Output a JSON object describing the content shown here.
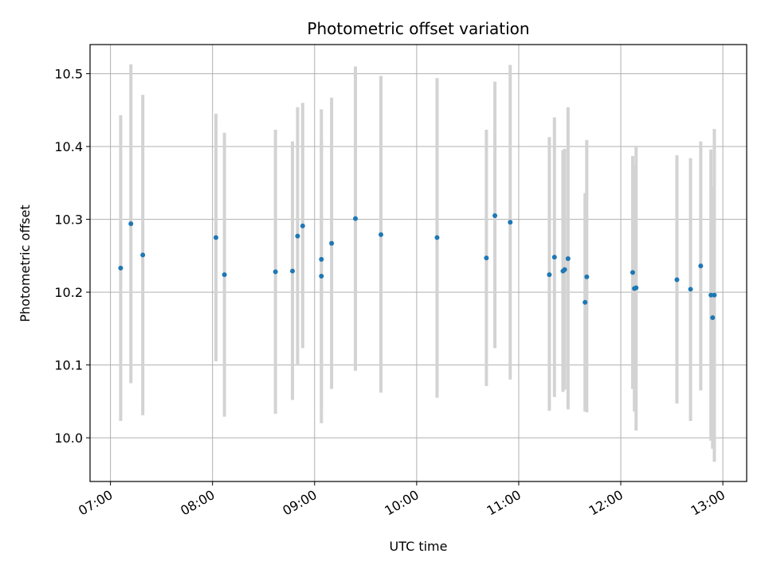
{
  "chart_data": {
    "type": "scatter",
    "title": "Photometric offset variation",
    "xlabel": "UTC time",
    "ylabel": "Photometric offset",
    "x_tick_labels": [
      "07:00",
      "08:00",
      "09:00",
      "10:00",
      "11:00",
      "12:00",
      "13:00"
    ],
    "y_tick_labels": [
      "10.0",
      "10.1",
      "10.2",
      "10.3",
      "10.4",
      "10.5"
    ],
    "x_ticks": [
      "07:00",
      "08:00",
      "09:00",
      "10:00",
      "11:00",
      "12:00",
      "13:00"
    ],
    "y_ticks": [
      10.0,
      10.1,
      10.2,
      10.3,
      10.4,
      10.5
    ],
    "xlim": [
      "06:48",
      "13:14"
    ],
    "ylim": [
      9.94,
      10.54
    ],
    "grid": true,
    "marker_color": "#1f77b4",
    "errorbar_color": "#d3d3d3",
    "points": [
      {
        "x": "07:06",
        "y": 10.233,
        "ylow": 10.023,
        "yhigh": 10.443
      },
      {
        "x": "07:12",
        "y": 10.294,
        "ylow": 10.075,
        "yhigh": 10.513
      },
      {
        "x": "07:19",
        "y": 10.251,
        "ylow": 10.031,
        "yhigh": 10.471
      },
      {
        "x": "08:02",
        "y": 10.275,
        "ylow": 10.105,
        "yhigh": 10.445
      },
      {
        "x": "08:07",
        "y": 10.224,
        "ylow": 10.029,
        "yhigh": 10.419
      },
      {
        "x": "08:37",
        "y": 10.228,
        "ylow": 10.033,
        "yhigh": 10.423
      },
      {
        "x": "08:47",
        "y": 10.229,
        "ylow": 10.052,
        "yhigh": 10.407
      },
      {
        "x": "08:50",
        "y": 10.277,
        "ylow": 10.099,
        "yhigh": 10.454
      },
      {
        "x": "08:53",
        "y": 10.291,
        "ylow": 10.123,
        "yhigh": 10.46
      },
      {
        "x": "09:04",
        "y": 10.222,
        "ylow": 10.02,
        "yhigh": 10.409
      },
      {
        "x": "09:04",
        "y": 10.245,
        "ylow": 10.04,
        "yhigh": 10.451
      },
      {
        "x": "09:10",
        "y": 10.267,
        "ylow": 10.067,
        "yhigh": 10.467
      },
      {
        "x": "09:24",
        "y": 10.301,
        "ylow": 10.092,
        "yhigh": 10.51
      },
      {
        "x": "09:39",
        "y": 10.279,
        "ylow": 10.062,
        "yhigh": 10.497
      },
      {
        "x": "10:12",
        "y": 10.275,
        "ylow": 10.055,
        "yhigh": 10.494
      },
      {
        "x": "10:41",
        "y": 10.247,
        "ylow": 10.071,
        "yhigh": 10.423
      },
      {
        "x": "10:46",
        "y": 10.305,
        "ylow": 10.123,
        "yhigh": 10.489
      },
      {
        "x": "10:55",
        "y": 10.296,
        "ylow": 10.08,
        "yhigh": 10.512
      },
      {
        "x": "11:18",
        "y": 10.224,
        "ylow": 10.037,
        "yhigh": 10.413
      },
      {
        "x": "11:21",
        "y": 10.248,
        "ylow": 10.056,
        "yhigh": 10.44
      },
      {
        "x": "11:26",
        "y": 10.229,
        "ylow": 10.063,
        "yhigh": 10.395
      },
      {
        "x": "11:27",
        "y": 10.231,
        "ylow": 10.066,
        "yhigh": 10.397
      },
      {
        "x": "11:29",
        "y": 10.246,
        "ylow": 10.039,
        "yhigh": 10.454
      },
      {
        "x": "11:39",
        "y": 10.186,
        "ylow": 10.036,
        "yhigh": 10.336
      },
      {
        "x": "11:40",
        "y": 10.221,
        "ylow": 10.035,
        "yhigh": 10.409
      },
      {
        "x": "12:07",
        "y": 10.227,
        "ylow": 10.067,
        "yhigh": 10.387
      },
      {
        "x": "12:08",
        "y": 10.205,
        "ylow": 10.036,
        "yhigh": 10.374
      },
      {
        "x": "12:09",
        "y": 10.206,
        "ylow": 10.01,
        "yhigh": 10.401
      },
      {
        "x": "12:33",
        "y": 10.217,
        "ylow": 10.047,
        "yhigh": 10.388
      },
      {
        "x": "12:41",
        "y": 10.204,
        "ylow": 10.023,
        "yhigh": 10.384
      },
      {
        "x": "12:47",
        "y": 10.236,
        "ylow": 10.065,
        "yhigh": 10.407
      },
      {
        "x": "12:53",
        "y": 10.196,
        "ylow": 9.996,
        "yhigh": 10.396
      },
      {
        "x": "12:54",
        "y": 10.165,
        "ylow": 9.985,
        "yhigh": 10.345
      },
      {
        "x": "12:55",
        "y": 10.196,
        "ylow": 9.967,
        "yhigh": 10.424
      }
    ]
  }
}
